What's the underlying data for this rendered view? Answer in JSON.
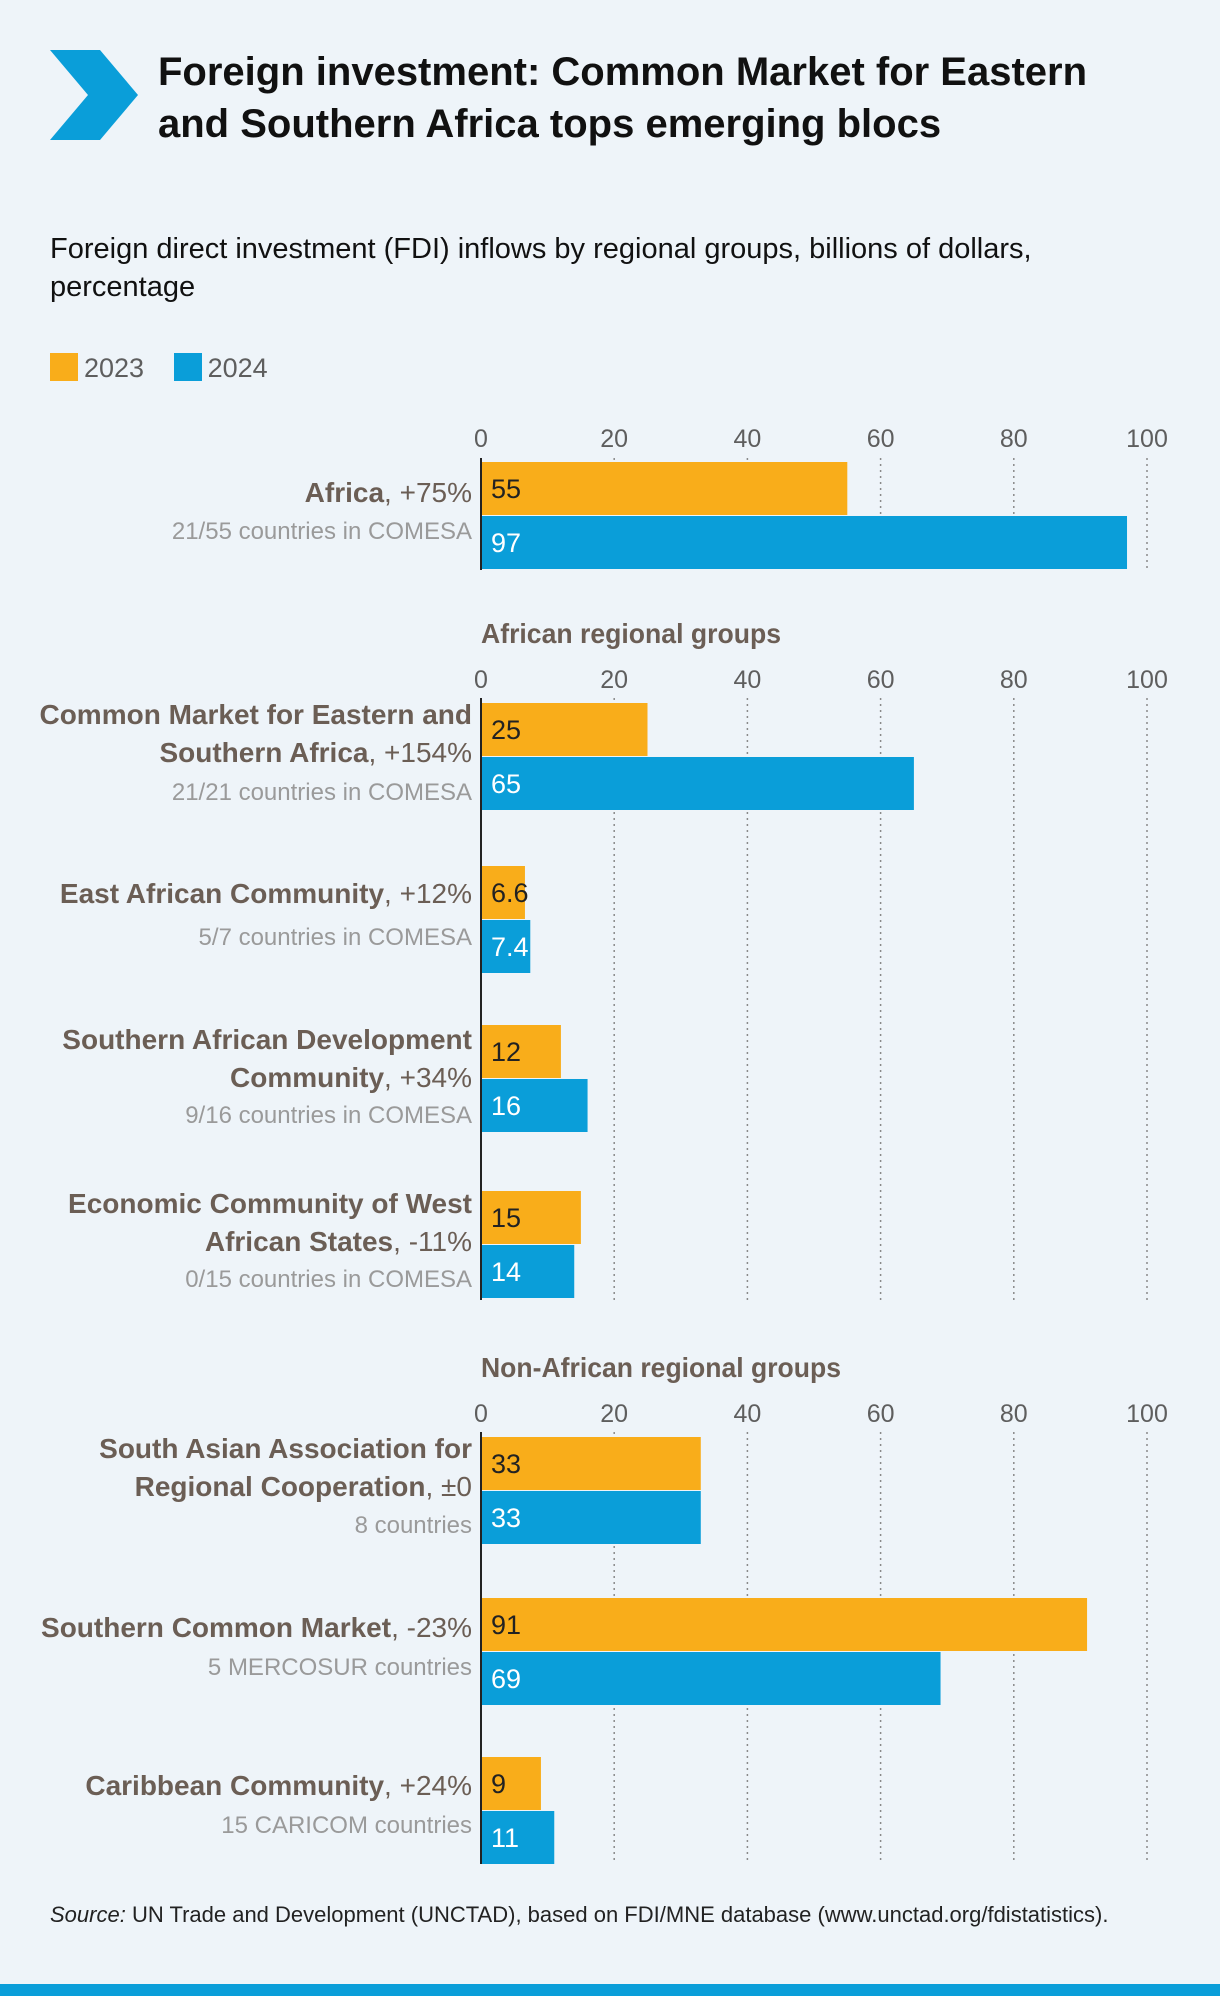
{
  "title": "Foreign investment: Common Market for Eastern and Southern Africa tops emerging blocs",
  "subtitle": "Foreign direct investment (FDI) inflows by regional groups, billions of dollars, percentage",
  "legend": [
    {
      "label": "2023",
      "color": "#f9ad1a"
    },
    {
      "label": "2024",
      "color": "#0a9ed9"
    }
  ],
  "source": {
    "prefix": "Source:",
    "text": "UN Trade and Development (UNCTAD), based on FDI/MNE database (www.unctad.org/fdistatistics)."
  },
  "colors": {
    "y2023": "#f9ad1a",
    "y2024": "#0a9ed9",
    "label": "#6b5e55",
    "sublabel": "#9a9a9a",
    "axis": "#222222"
  },
  "chart_data": {
    "type": "bar",
    "orientation": "horizontal",
    "xlim": [
      0,
      100
    ],
    "ticks": [
      "0",
      "20",
      "40",
      "60",
      "80",
      "100"
    ],
    "series_names": [
      "2023",
      "2024"
    ],
    "groups": [
      {
        "heading": "",
        "rows": [
          {
            "name": "Africa",
            "change": ", +75%",
            "sub": "21/55 countries in COMESA",
            "values": [
              55,
              97
            ],
            "labels": [
              "55",
              "97"
            ]
          }
        ]
      },
      {
        "heading": "African regional groups",
        "rows": [
          {
            "name": "Common Market for Eastern and Southern Africa",
            "change": ", +154%",
            "sub": "21/21 countries in COMESA",
            "values": [
              25,
              65
            ],
            "labels": [
              "25",
              "65"
            ]
          },
          {
            "name": "East African Community",
            "change": ", +12%",
            "sub": "5/7 countries in COMESA",
            "values": [
              6.6,
              7.4
            ],
            "labels": [
              "6.6",
              "7.4"
            ]
          },
          {
            "name": "Southern African Development Community",
            "change": ", +34%",
            "sub": "9/16 countries in COMESA",
            "values": [
              12,
              16
            ],
            "labels": [
              "12",
              "16"
            ]
          },
          {
            "name": "Economic Community of West African States",
            "change": ", -11%",
            "sub": "0/15 countries in COMESA",
            "values": [
              15,
              14
            ],
            "labels": [
              "15",
              "14"
            ]
          }
        ]
      },
      {
        "heading": "Non-African regional groups",
        "rows": [
          {
            "name": "South Asian Association for Regional Cooperation",
            "change": ", ±0",
            "sub": "8 countries",
            "values": [
              33,
              33
            ],
            "labels": [
              "33",
              "33"
            ]
          },
          {
            "name": "Southern Common Market",
            "change": ", -23%",
            "sub": "5 MERCOSUR countries",
            "values": [
              91,
              69
            ],
            "labels": [
              "91",
              "69"
            ]
          },
          {
            "name": "Caribbean Community",
            "change": ", +24%",
            "sub": "15 CARICOM countries",
            "values": [
              9,
              11
            ],
            "labels": [
              "9",
              "11"
            ]
          }
        ]
      }
    ]
  }
}
